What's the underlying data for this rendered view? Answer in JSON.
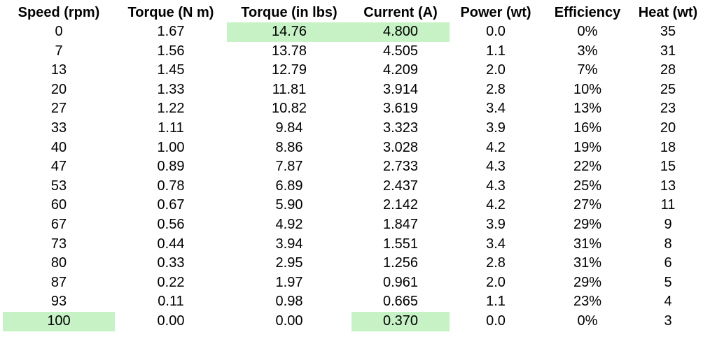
{
  "table": {
    "columns": [
      "Speed (rpm)",
      "Torque (N m)",
      "Torque (in lbs)",
      "Current (A)",
      "Power (wt)",
      "Efficiency",
      "Heat (wt)"
    ],
    "rows": [
      [
        "0",
        "1.67",
        "14.76",
        "4.800",
        "0.0",
        "0%",
        "35"
      ],
      [
        "7",
        "1.56",
        "13.78",
        "4.505",
        "1.1",
        "3%",
        "31"
      ],
      [
        "13",
        "1.45",
        "12.79",
        "4.209",
        "2.0",
        "7%",
        "28"
      ],
      [
        "20",
        "1.33",
        "11.81",
        "3.914",
        "2.8",
        "10%",
        "25"
      ],
      [
        "27",
        "1.22",
        "10.82",
        "3.619",
        "3.4",
        "13%",
        "23"
      ],
      [
        "33",
        "1.11",
        "9.84",
        "3.323",
        "3.9",
        "16%",
        "20"
      ],
      [
        "40",
        "1.00",
        "8.86",
        "3.028",
        "4.2",
        "19%",
        "18"
      ],
      [
        "47",
        "0.89",
        "7.87",
        "2.733",
        "4.3",
        "22%",
        "15"
      ],
      [
        "53",
        "0.78",
        "6.89",
        "2.437",
        "4.3",
        "25%",
        "13"
      ],
      [
        "60",
        "0.67",
        "5.90",
        "2.142",
        "4.2",
        "27%",
        "11"
      ],
      [
        "67",
        "0.56",
        "4.92",
        "1.847",
        "3.9",
        "29%",
        "9"
      ],
      [
        "73",
        "0.44",
        "3.94",
        "1.551",
        "3.4",
        "31%",
        "8"
      ],
      [
        "80",
        "0.33",
        "2.95",
        "1.256",
        "2.8",
        "31%",
        "6"
      ],
      [
        "87",
        "0.22",
        "1.97",
        "0.961",
        "2.0",
        "29%",
        "5"
      ],
      [
        "93",
        "0.11",
        "0.98",
        "0.665",
        "1.1",
        "23%",
        "4"
      ],
      [
        "100",
        "0.00",
        "0.00",
        "0.370",
        "0.0",
        "0%",
        "3"
      ]
    ],
    "highlight_color": "#c6f2c6",
    "highlighted_cells": [
      [
        0,
        2
      ],
      [
        0,
        3
      ],
      [
        15,
        0
      ],
      [
        15,
        3
      ]
    ]
  }
}
